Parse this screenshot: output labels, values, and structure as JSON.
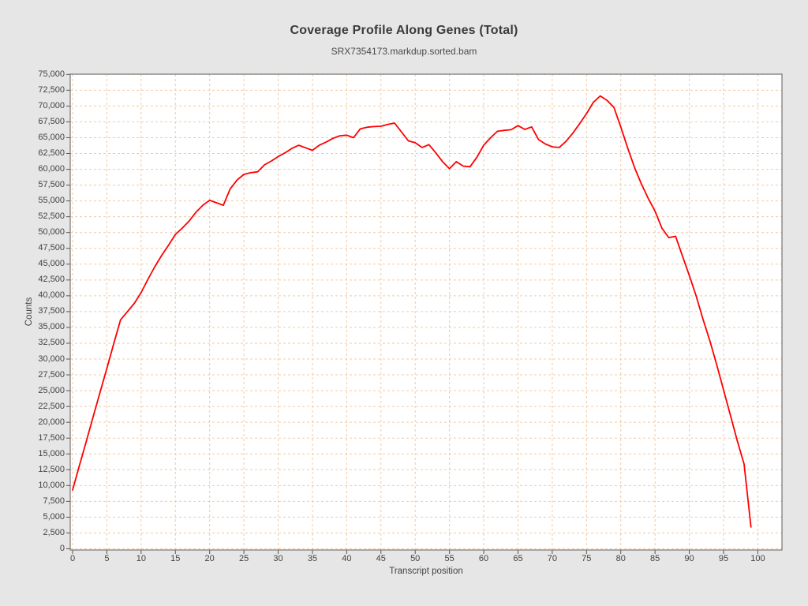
{
  "chart": {
    "title": "Coverage Profile Along Genes (Total)",
    "subtitle": "SRX7354173.markdup.sorted.bam"
  },
  "chart_data": {
    "type": "line",
    "title": "Coverage Profile Along Genes (Total)",
    "subtitle": "SRX7354173.markdup.sorted.bam",
    "xlabel": "Transcript position",
    "ylabel": "Counts",
    "xlim": [
      0,
      100
    ],
    "ylim": [
      0,
      75000
    ],
    "grid": true,
    "grid_style": "dashed",
    "legend_position": "none",
    "line_color": "#fe0000",
    "grid_color": "#f3c9a2",
    "plot_bg_color": "#ffffff",
    "outer_bg_color": "#e6e6e6",
    "border_color": "#767676",
    "x_ticks": [
      0,
      5,
      10,
      15,
      20,
      25,
      30,
      35,
      40,
      45,
      50,
      55,
      60,
      65,
      70,
      75,
      80,
      85,
      90,
      95,
      100
    ],
    "y_ticks": [
      0,
      2500,
      5000,
      7500,
      10000,
      12500,
      15000,
      17500,
      20000,
      22500,
      25000,
      27500,
      30000,
      32500,
      35000,
      37500,
      40000,
      42500,
      45000,
      47500,
      50000,
      52500,
      55000,
      57500,
      60000,
      62500,
      65000,
      67500,
      70000,
      72500,
      75000
    ],
    "x_start": 0,
    "x_step": 1,
    "x": [
      0,
      1,
      2,
      3,
      4,
      5,
      6,
      7,
      8,
      9,
      10,
      11,
      12,
      13,
      14,
      15,
      16,
      17,
      18,
      19,
      20,
      21,
      22,
      23,
      24,
      25,
      26,
      27,
      28,
      29,
      30,
      31,
      32,
      33,
      34,
      35,
      36,
      37,
      38,
      39,
      40,
      41,
      42,
      43,
      44,
      45,
      46,
      47,
      48,
      49,
      50,
      51,
      52,
      53,
      54,
      55,
      56,
      57,
      58,
      59,
      60,
      61,
      62,
      63,
      64,
      65,
      66,
      67,
      68,
      69,
      70,
      71,
      72,
      73,
      74,
      75,
      76,
      77,
      78,
      79,
      80,
      81,
      82,
      83,
      84,
      85,
      86,
      87,
      88,
      89,
      90,
      91,
      92,
      93,
      94,
      95,
      96,
      97,
      98,
      99
    ],
    "series": [
      {
        "name": "Total",
        "values": [
          9300,
          13200,
          17000,
          20900,
          24700,
          28500,
          32400,
          36200,
          37500,
          38800,
          40500,
          42600,
          44600,
          46400,
          48000,
          49700,
          50700,
          51800,
          53200,
          54300,
          55100,
          54700,
          54300,
          56900,
          58300,
          59200,
          59450,
          59600,
          60700,
          61300,
          62000,
          62600,
          63300,
          63800,
          63400,
          63000,
          63800,
          64300,
          64900,
          65300,
          65400,
          65000,
          66400,
          66650,
          66750,
          66800,
          67100,
          67300,
          65900,
          64500,
          64200,
          63450,
          63900,
          62600,
          61200,
          60100,
          61200,
          60500,
          60400,
          61900,
          63800,
          65000,
          66000,
          66150,
          66250,
          66900,
          66300,
          66700,
          64700,
          64000,
          63550,
          63450,
          64400,
          65700,
          67200,
          68800,
          70600,
          71600,
          70900,
          69800,
          66700,
          63400,
          60300,
          57700,
          55400,
          53400,
          50700,
          49200,
          49400,
          46300,
          43200,
          40000,
          36300,
          32900,
          29100,
          25100,
          21100,
          17100,
          13400,
          3450
        ]
      }
    ]
  }
}
